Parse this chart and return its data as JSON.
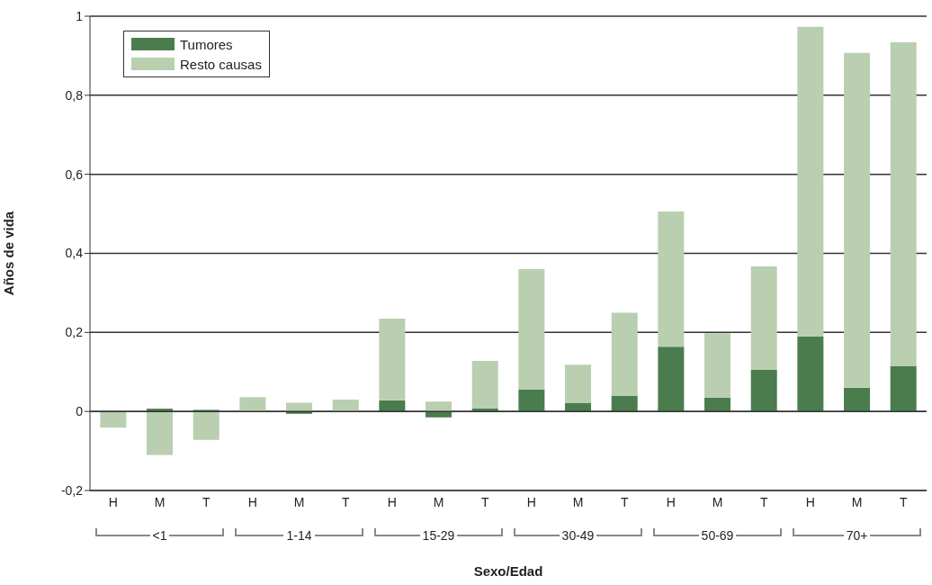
{
  "chart_data": {
    "type": "bar",
    "stacked": true,
    "xlabel": "Sexo/Edad",
    "ylabel": "Años de vida",
    "categories": [
      "H",
      "M",
      "T",
      "H",
      "M",
      "T",
      "H",
      "M",
      "T",
      "H",
      "M",
      "T",
      "H",
      "M",
      "T",
      "H",
      "M",
      "T"
    ],
    "series": [
      {
        "name": "Tumores",
        "color": "#4a7c4e",
        "values": [
          0,
          0.007,
          0.004,
          0,
          -0.006,
          0,
          0.028,
          -0.015,
          0.008,
          0.055,
          0.022,
          0.04,
          0.164,
          0.035,
          0.105,
          0.19,
          0.06,
          0.114
        ]
      },
      {
        "name": "Resto causas",
        "color": "#bacfb0",
        "values": [
          -0.041,
          -0.11,
          -0.072,
          0.036,
          0.022,
          0.03,
          0.207,
          0.025,
          0.12,
          0.305,
          0.096,
          0.21,
          0.342,
          0.163,
          0.262,
          0.783,
          0.847,
          0.82
        ]
      }
    ],
    "annotations": [
      "<1",
      "1-14",
      "15-29",
      "30-49",
      "50-69",
      "70+"
    ],
    "ylim": [
      -0.2,
      1
    ],
    "yticks": [
      {
        "value": -0.2,
        "label": "-0,2"
      },
      0,
      {
        "value": 0.2,
        "label": "0,2"
      },
      {
        "value": 0.4,
        "label": "0,4"
      },
      {
        "value": 0.6,
        "label": "0,6"
      },
      {
        "value": 0.8,
        "label": "0,8"
      },
      1
    ],
    "grid": "y",
    "legend": "top left"
  }
}
